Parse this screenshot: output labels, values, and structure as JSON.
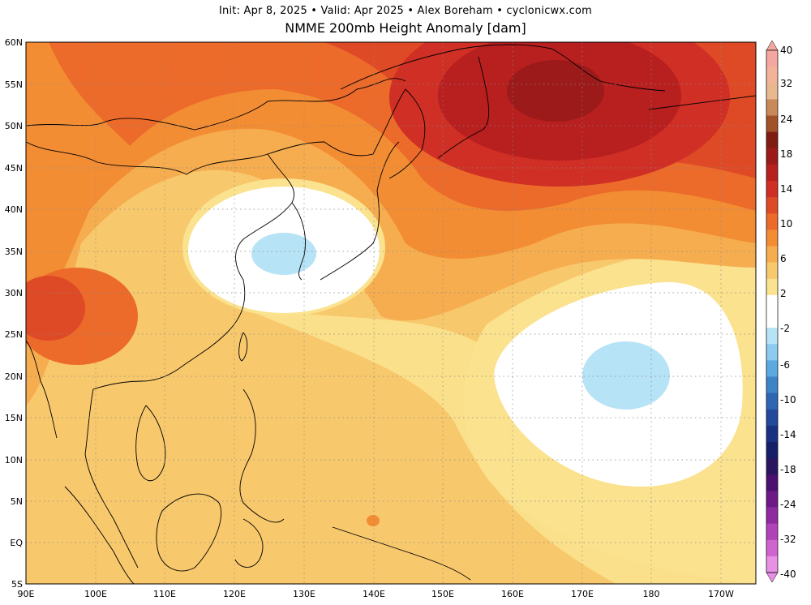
{
  "header": {
    "subtitle": "Init: Apr 8, 2025  •  Valid: Apr 2025  •  Alex Boreham  •  cyclonicwx.com",
    "title": "NMME 200mb Height Anomaly [dam]"
  },
  "map": {
    "projection": "equirectangular",
    "lon_range": [
      90,
      195
    ],
    "lat_range": [
      -5,
      60
    ],
    "lat_ticks": [
      "60N",
      "55N",
      "50N",
      "45N",
      "40N",
      "35N",
      "30N",
      "25N",
      "20N",
      "15N",
      "10N",
      "5N",
      "EQ",
      "5S"
    ],
    "lon_ticks": [
      "90E",
      "100E",
      "110E",
      "120E",
      "130E",
      "140E",
      "150E",
      "160E",
      "170E",
      "180",
      "170W"
    ],
    "gridlines": "dotted",
    "features": [
      {
        "name": "positive-anomaly-max-north-pacific",
        "lon": 167,
        "lat": 54,
        "value_approx": 20
      },
      {
        "name": "negative-anomaly-korea-japan",
        "lon": 127,
        "lat": 34,
        "value_approx": -1
      },
      {
        "name": "negative-anomaly-central-pacific",
        "lon": 179,
        "lat": 19,
        "value_approx": -1
      }
    ]
  },
  "colorbar": {
    "unit": "dam",
    "labels": [
      "40",
      "32",
      "24",
      "18",
      "14",
      "10",
      "6",
      "2",
      "-2",
      "-6",
      "-10",
      "-14",
      "-18",
      "-24",
      "-32",
      "-40"
    ],
    "colors": [
      "#f4a7a0",
      "#f2b39a",
      "#e8b890",
      "#c98a5a",
      "#a2522a",
      "#7f1d12",
      "#9c1a1a",
      "#b81f1f",
      "#cf2f24",
      "#df4a26",
      "#ec6a2a",
      "#f38d34",
      "#f6ad4f",
      "#f8c86c",
      "#fbe28f",
      "#ffffff",
      "#ffffff",
      "#b7e3f6",
      "#8ccaf0",
      "#5aa9e0",
      "#3d84c9",
      "#2f66b4",
      "#23499c",
      "#1a3183",
      "#151f6a",
      "#2a1560",
      "#4b1070",
      "#6d1a88",
      "#8f2aa0",
      "#b043b8",
      "#cf63cf",
      "#e890e4"
    ]
  }
}
